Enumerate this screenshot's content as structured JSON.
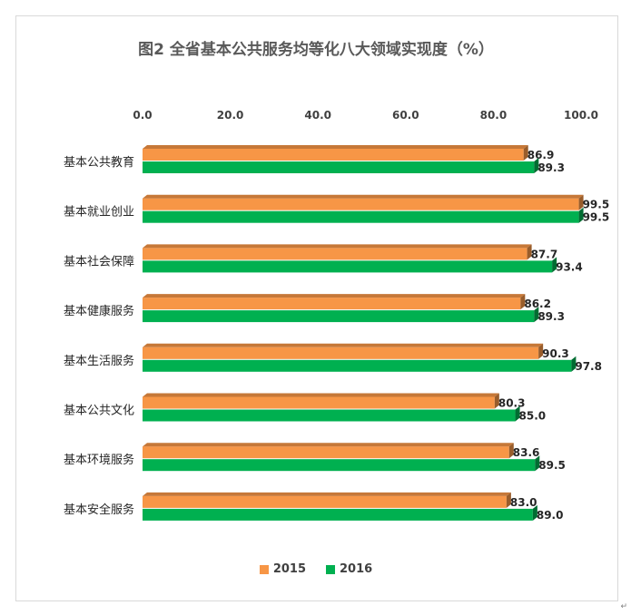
{
  "chart_data": {
    "type": "bar",
    "orientation": "horizontal",
    "title": "图2 全省基本公共服务均等化八大领域实现度（%）",
    "categories": [
      "基本公共教育",
      "基本就业创业",
      "基本社会保障",
      "基本健康服务",
      "基本生活服务",
      "基本公共文化",
      "基本环境服务",
      "基本安全服务"
    ],
    "series": [
      {
        "name": "2015",
        "color": "#f79646",
        "values": [
          86.9,
          99.5,
          87.7,
          86.2,
          90.3,
          80.3,
          83.6,
          83.0
        ]
      },
      {
        "name": "2016",
        "color": "#00b050",
        "values": [
          89.3,
          99.5,
          93.4,
          89.3,
          97.8,
          85.0,
          89.5,
          89.0
        ]
      }
    ],
    "xlim": [
      0,
      100
    ],
    "xticks": [
      "0.0",
      "20.0",
      "40.0",
      "60.0",
      "80.0",
      "100.0"
    ],
    "axis_position": "top",
    "legend_position": "bottom",
    "grid": false,
    "style": "3d-bars"
  },
  "page_mark": "↵"
}
